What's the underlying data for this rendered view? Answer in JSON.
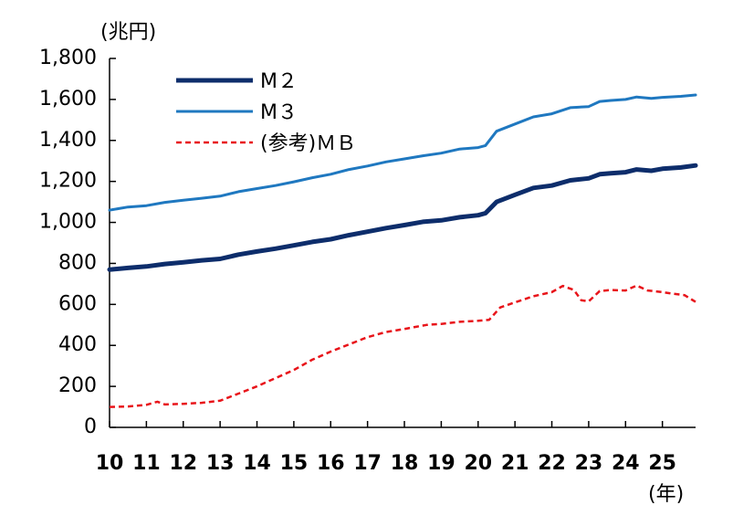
{
  "chart_data": {
    "type": "line",
    "y_unit_label": "(兆円)",
    "x_unit_label": "(年)",
    "ylim": [
      0,
      1800
    ],
    "y_ticks": [
      {
        "v": 0,
        "label": "0"
      },
      {
        "v": 200,
        "label": "200"
      },
      {
        "v": 400,
        "label": "400"
      },
      {
        "v": 600,
        "label": "600"
      },
      {
        "v": 800,
        "label": "800"
      },
      {
        "v": 1000,
        "label": "1,000"
      },
      {
        "v": 1200,
        "label": "1,200"
      },
      {
        "v": 1400,
        "label": "1,400"
      },
      {
        "v": 1600,
        "label": "1,600"
      },
      {
        "v": 1800,
        "label": "1,800"
      }
    ],
    "x_ticks": [
      "10",
      "11",
      "12",
      "13",
      "14",
      "15",
      "16",
      "17",
      "18",
      "19",
      "20",
      "21",
      "22",
      "23",
      "24",
      "25"
    ],
    "xlim": [
      10,
      25.9
    ],
    "grid": false,
    "legend_position": "top-left",
    "series": [
      {
        "name": "M２",
        "color": "#0d2d6b",
        "style": "solid-thick",
        "points": [
          [
            10.0,
            770
          ],
          [
            10.5,
            778
          ],
          [
            11.0,
            785
          ],
          [
            11.5,
            797
          ],
          [
            12.0,
            805
          ],
          [
            12.5,
            815
          ],
          [
            13.0,
            822
          ],
          [
            13.5,
            843
          ],
          [
            14.0,
            858
          ],
          [
            14.5,
            872
          ],
          [
            15.0,
            888
          ],
          [
            15.5,
            905
          ],
          [
            16.0,
            918
          ],
          [
            16.5,
            938
          ],
          [
            17.0,
            955
          ],
          [
            17.5,
            972
          ],
          [
            18.0,
            987
          ],
          [
            18.5,
            1003
          ],
          [
            19.0,
            1010
          ],
          [
            19.5,
            1025
          ],
          [
            20.0,
            1035
          ],
          [
            20.2,
            1045
          ],
          [
            20.5,
            1100
          ],
          [
            21.0,
            1135
          ],
          [
            21.5,
            1168
          ],
          [
            22.0,
            1180
          ],
          [
            22.5,
            1205
          ],
          [
            23.0,
            1215
          ],
          [
            23.3,
            1235
          ],
          [
            23.6,
            1240
          ],
          [
            24.0,
            1245
          ],
          [
            24.3,
            1258
          ],
          [
            24.7,
            1252
          ],
          [
            25.0,
            1262
          ],
          [
            25.5,
            1268
          ],
          [
            25.9,
            1278
          ]
        ]
      },
      {
        "name": "M３",
        "color": "#1f78c0",
        "style": "solid-thin",
        "points": [
          [
            10.0,
            1060
          ],
          [
            10.5,
            1075
          ],
          [
            11.0,
            1082
          ],
          [
            11.5,
            1098
          ],
          [
            12.0,
            1108
          ],
          [
            12.5,
            1118
          ],
          [
            13.0,
            1128
          ],
          [
            13.5,
            1150
          ],
          [
            14.0,
            1165
          ],
          [
            14.5,
            1180
          ],
          [
            15.0,
            1198
          ],
          [
            15.5,
            1218
          ],
          [
            16.0,
            1235
          ],
          [
            16.5,
            1258
          ],
          [
            17.0,
            1275
          ],
          [
            17.5,
            1295
          ],
          [
            18.0,
            1310
          ],
          [
            18.5,
            1325
          ],
          [
            19.0,
            1338
          ],
          [
            19.5,
            1358
          ],
          [
            20.0,
            1365
          ],
          [
            20.2,
            1375
          ],
          [
            20.5,
            1445
          ],
          [
            21.0,
            1480
          ],
          [
            21.5,
            1515
          ],
          [
            22.0,
            1530
          ],
          [
            22.5,
            1560
          ],
          [
            23.0,
            1565
          ],
          [
            23.3,
            1590
          ],
          [
            23.6,
            1595
          ],
          [
            24.0,
            1600
          ],
          [
            24.3,
            1612
          ],
          [
            24.7,
            1605
          ],
          [
            25.0,
            1610
          ],
          [
            25.5,
            1615
          ],
          [
            25.9,
            1622
          ]
        ]
      },
      {
        "name": "(参考)ＭＢ",
        "color": "#e8141a",
        "style": "dashed",
        "points": [
          [
            10.0,
            100
          ],
          [
            10.5,
            102
          ],
          [
            11.0,
            110
          ],
          [
            11.3,
            125
          ],
          [
            11.5,
            112
          ],
          [
            12.0,
            115
          ],
          [
            12.5,
            120
          ],
          [
            13.0,
            130
          ],
          [
            13.5,
            165
          ],
          [
            14.0,
            200
          ],
          [
            14.5,
            240
          ],
          [
            15.0,
            280
          ],
          [
            15.5,
            330
          ],
          [
            16.0,
            370
          ],
          [
            16.5,
            405
          ],
          [
            17.0,
            440
          ],
          [
            17.5,
            465
          ],
          [
            18.0,
            480
          ],
          [
            18.3,
            490
          ],
          [
            18.6,
            500
          ],
          [
            19.0,
            505
          ],
          [
            19.5,
            515
          ],
          [
            20.0,
            520
          ],
          [
            20.3,
            525
          ],
          [
            20.6,
            585
          ],
          [
            21.0,
            610
          ],
          [
            21.5,
            640
          ],
          [
            22.0,
            660
          ],
          [
            22.3,
            690
          ],
          [
            22.6,
            670
          ],
          [
            22.8,
            620
          ],
          [
            23.0,
            615
          ],
          [
            23.3,
            665
          ],
          [
            23.6,
            670
          ],
          [
            24.0,
            668
          ],
          [
            24.3,
            692
          ],
          [
            24.6,
            668
          ],
          [
            25.0,
            660
          ],
          [
            25.3,
            652
          ],
          [
            25.6,
            645
          ],
          [
            25.9,
            612
          ]
        ]
      }
    ]
  }
}
